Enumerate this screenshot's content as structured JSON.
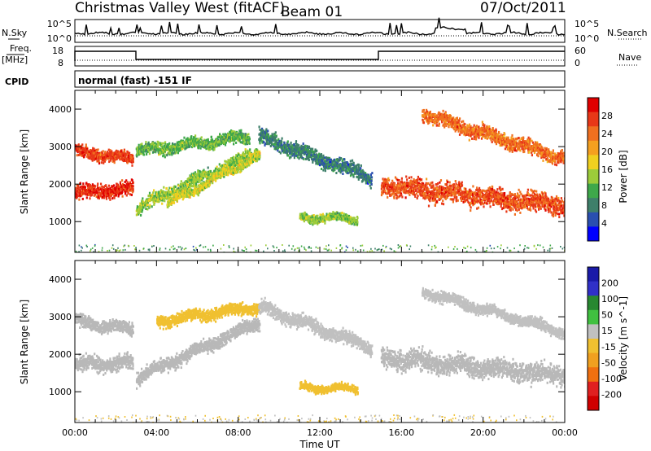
{
  "header": {
    "station": "Christmas Valley West (fitACF)",
    "beam": "Beam 01",
    "date": "07/Oct/2011"
  },
  "strip_panels": {
    "nsky": {
      "left_label": "N.Sky",
      "right_label": "N.Search",
      "yticks_left": [
        "10^5",
        "10^0"
      ],
      "yticks_right": [
        "10^5",
        "10^0"
      ]
    },
    "freq": {
      "left_label_1": "Freq.",
      "left_label_2": "[MHz]",
      "right_label": "Nave",
      "yticks_left": [
        "18",
        "8"
      ],
      "yticks_right": [
        "60",
        "0"
      ]
    },
    "cpid": {
      "label": "CPID",
      "text": "normal (fast) -151 IF"
    }
  },
  "colors": {
    "power_scale": [
      "#0000ff",
      "#2a4fb0",
      "#3e7f6a",
      "#3ea84a",
      "#9ccc3a",
      "#f0d020",
      "#f5a020",
      "#f07020",
      "#e83818",
      "#e00000"
    ],
    "velocity_scale": [
      "#1a1aa8",
      "#3030c8",
      "#288830",
      "#40c040",
      "#c0c0c0",
      "#f0c030",
      "#f0a020",
      "#f07010",
      "#e02020",
      "#d00000"
    ],
    "ground_scatter": "#b8b8b8"
  },
  "chart_data": [
    {
      "type": "heatmap",
      "name": "power-panel",
      "ylabel": "Slant Range [km]",
      "ylim": [
        180,
        4500
      ],
      "yticks": [
        "1000",
        "2000",
        "3000",
        "4000"
      ],
      "xlim_hours": [
        0,
        24
      ],
      "colorbar": {
        "label": "Power [dB]",
        "ticks": [
          "4",
          "8",
          "12",
          "16",
          "20",
          "24",
          "28"
        ],
        "range": [
          0,
          32
        ]
      },
      "traces": [
        {
          "from": 0,
          "to": 2.8,
          "r0": 1800,
          "r1": 1900,
          "w": 260,
          "level": 28
        },
        {
          "from": 0,
          "to": 2.8,
          "r0": 2900,
          "r1": 2700,
          "w": 220,
          "level": 27
        },
        {
          "from": 3.0,
          "to": 9.0,
          "r0": 1400,
          "r1": 2900,
          "w": 250,
          "level": 14
        },
        {
          "from": 3.0,
          "to": 8.5,
          "r0": 2900,
          "r1": 3300,
          "w": 220,
          "level": 12
        },
        {
          "from": 9.0,
          "to": 14.5,
          "r0": 3300,
          "r1": 2200,
          "w": 280,
          "level": 8
        },
        {
          "from": 4.5,
          "to": 9.0,
          "r0": 1500,
          "r1": 2800,
          "w": 150,
          "level": 16
        },
        {
          "from": 11.0,
          "to": 13.8,
          "r0": 1150,
          "r1": 1100,
          "w": 160,
          "level": 14
        },
        {
          "from": 15.0,
          "to": 24.0,
          "r0": 2000,
          "r1": 1450,
          "w": 380,
          "level": 26
        },
        {
          "from": 17.0,
          "to": 24.0,
          "r0": 3900,
          "r1": 2700,
          "w": 260,
          "level": 24
        }
      ]
    },
    {
      "type": "heatmap",
      "name": "velocity-panel",
      "ylabel": "Slant Range [km]",
      "ylim": [
        180,
        4500
      ],
      "yticks": [
        "1000",
        "2000",
        "3000",
        "4000"
      ],
      "xlabel": "Time UT",
      "xticks": [
        "00:00",
        "04:00",
        "08:00",
        "12:00",
        "16:00",
        "20:00",
        "00:00"
      ],
      "xlim_hours": [
        0,
        24
      ],
      "colorbar": {
        "label": "Velocity [m s^-1]",
        "ticks": [
          "200",
          "100",
          "50",
          "15",
          "-15",
          "-50",
          "-100",
          "-200"
        ],
        "range": [
          -250,
          250
        ]
      },
      "traces": [
        {
          "from": 0,
          "to": 2.8,
          "r0": 1750,
          "r1": 1800,
          "w": 280,
          "level": 0
        },
        {
          "from": 0,
          "to": 2.8,
          "r0": 2900,
          "r1": 2700,
          "w": 230,
          "level": 0
        },
        {
          "from": 3.0,
          "to": 9.0,
          "r0": 1400,
          "r1": 2900,
          "w": 250,
          "level": 0
        },
        {
          "from": 4.0,
          "to": 9.0,
          "r0": 2900,
          "r1": 3300,
          "w": 220,
          "level": -30
        },
        {
          "from": 9.0,
          "to": 14.5,
          "r0": 3300,
          "r1": 2200,
          "w": 250,
          "level": 20
        },
        {
          "from": 11.0,
          "to": 13.8,
          "r0": 1150,
          "r1": 1100,
          "w": 150,
          "level": -40
        },
        {
          "from": 15.0,
          "to": 24.0,
          "r0": 1950,
          "r1": 1450,
          "w": 380,
          "level": 0
        },
        {
          "from": 17.0,
          "to": 24.0,
          "r0": 3700,
          "r1": 2600,
          "w": 200,
          "level": 10
        }
      ]
    }
  ]
}
